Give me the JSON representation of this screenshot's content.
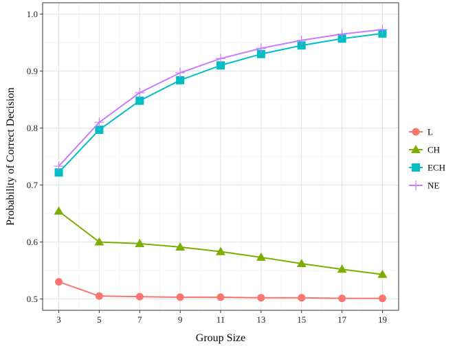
{
  "chart_data": {
    "type": "line",
    "title": "",
    "xlabel": "Group Size",
    "ylabel": "Probability of Correct Decision",
    "x": [
      3,
      5,
      7,
      9,
      11,
      13,
      15,
      17,
      19
    ],
    "x_ticks": [
      "3",
      "5",
      "7",
      "9",
      "11",
      "13",
      "15",
      "17",
      "19"
    ],
    "y_ticks": [
      "0.5",
      "0.6",
      "0.7",
      "0.8",
      "0.9",
      "1.0"
    ],
    "xlim": [
      2.2,
      19.8
    ],
    "ylim": [
      0.48,
      1.02
    ],
    "grid": true,
    "legend_position": "right",
    "series": [
      {
        "name": "L",
        "marker": "circle",
        "color": "#F8766D",
        "values": [
          0.53,
          0.505,
          0.504,
          0.503,
          0.503,
          0.502,
          0.502,
          0.501,
          0.501
        ]
      },
      {
        "name": "CH",
        "marker": "triangle",
        "color": "#7CAE00",
        "values": [
          0.654,
          0.6,
          0.597,
          0.591,
          0.583,
          0.573,
          0.562,
          0.552,
          0.543
        ]
      },
      {
        "name": "ECH",
        "marker": "square",
        "color": "#00BFC4",
        "values": [
          0.722,
          0.797,
          0.848,
          0.884,
          0.91,
          0.93,
          0.945,
          0.957,
          0.966
        ]
      },
      {
        "name": "NE",
        "marker": "plus",
        "color": "#C77CFF",
        "values": [
          0.733,
          0.81,
          0.862,
          0.897,
          0.922,
          0.94,
          0.954,
          0.965,
          0.973
        ]
      }
    ]
  }
}
